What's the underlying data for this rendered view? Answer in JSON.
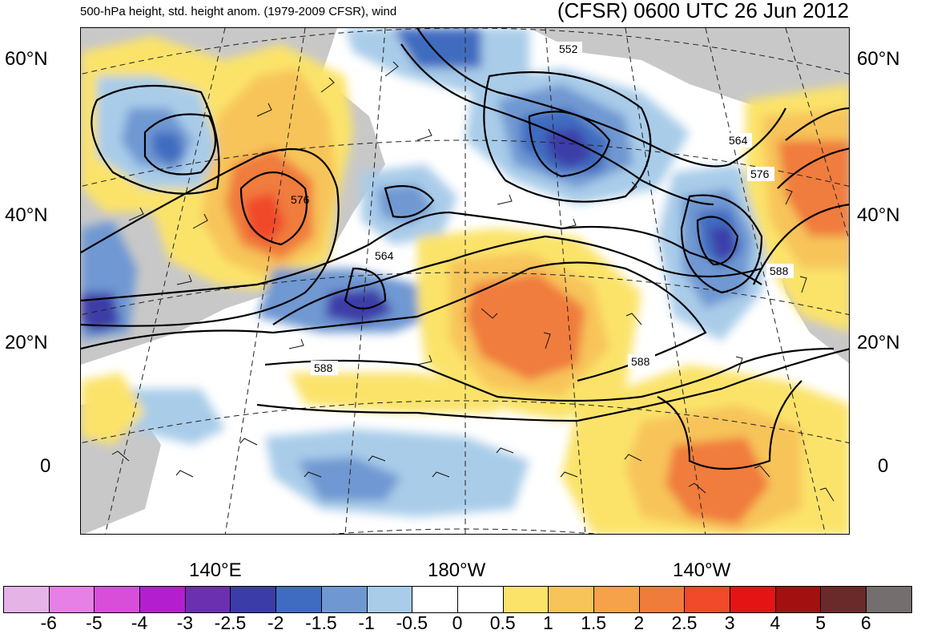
{
  "header": {
    "title_left": "500-hPa height, std. height anom. (1979-2009 CFSR), wind",
    "title_right": "(CFSR) 0600 UTC 26 Jun 2012"
  },
  "axes": {
    "lat_labels": [
      "60°N",
      "40°N",
      "20°N",
      "0"
    ],
    "lon_labels": [
      "140°E",
      "180°W",
      "140°W"
    ]
  },
  "contour_labels": [
    "552",
    "564",
    "576",
    "576",
    "564",
    "588",
    "588",
    "588"
  ],
  "colorbar": {
    "colors": [
      "#e6b3e6",
      "#e680e6",
      "#d94ed9",
      "#b31fcf",
      "#6a30b0",
      "#3c3ca8",
      "#3f6cc0",
      "#6f98d2",
      "#a9cce9",
      "#ffffff",
      "#ffffff",
      "#fbe36a",
      "#f7c45a",
      "#f5a24a",
      "#f07c3c",
      "#f04a2a",
      "#e41414",
      "#a31010",
      "#6b2a2a",
      "#756e6e"
    ],
    "labels": [
      "-6",
      "-5",
      "-4",
      "-3",
      "-2.5",
      "-2",
      "-1.5",
      "-1",
      "-0.5",
      "0",
      "0.5",
      "1",
      "1.5",
      "2",
      "2.5",
      "3",
      "4",
      "5",
      "6"
    ]
  }
}
